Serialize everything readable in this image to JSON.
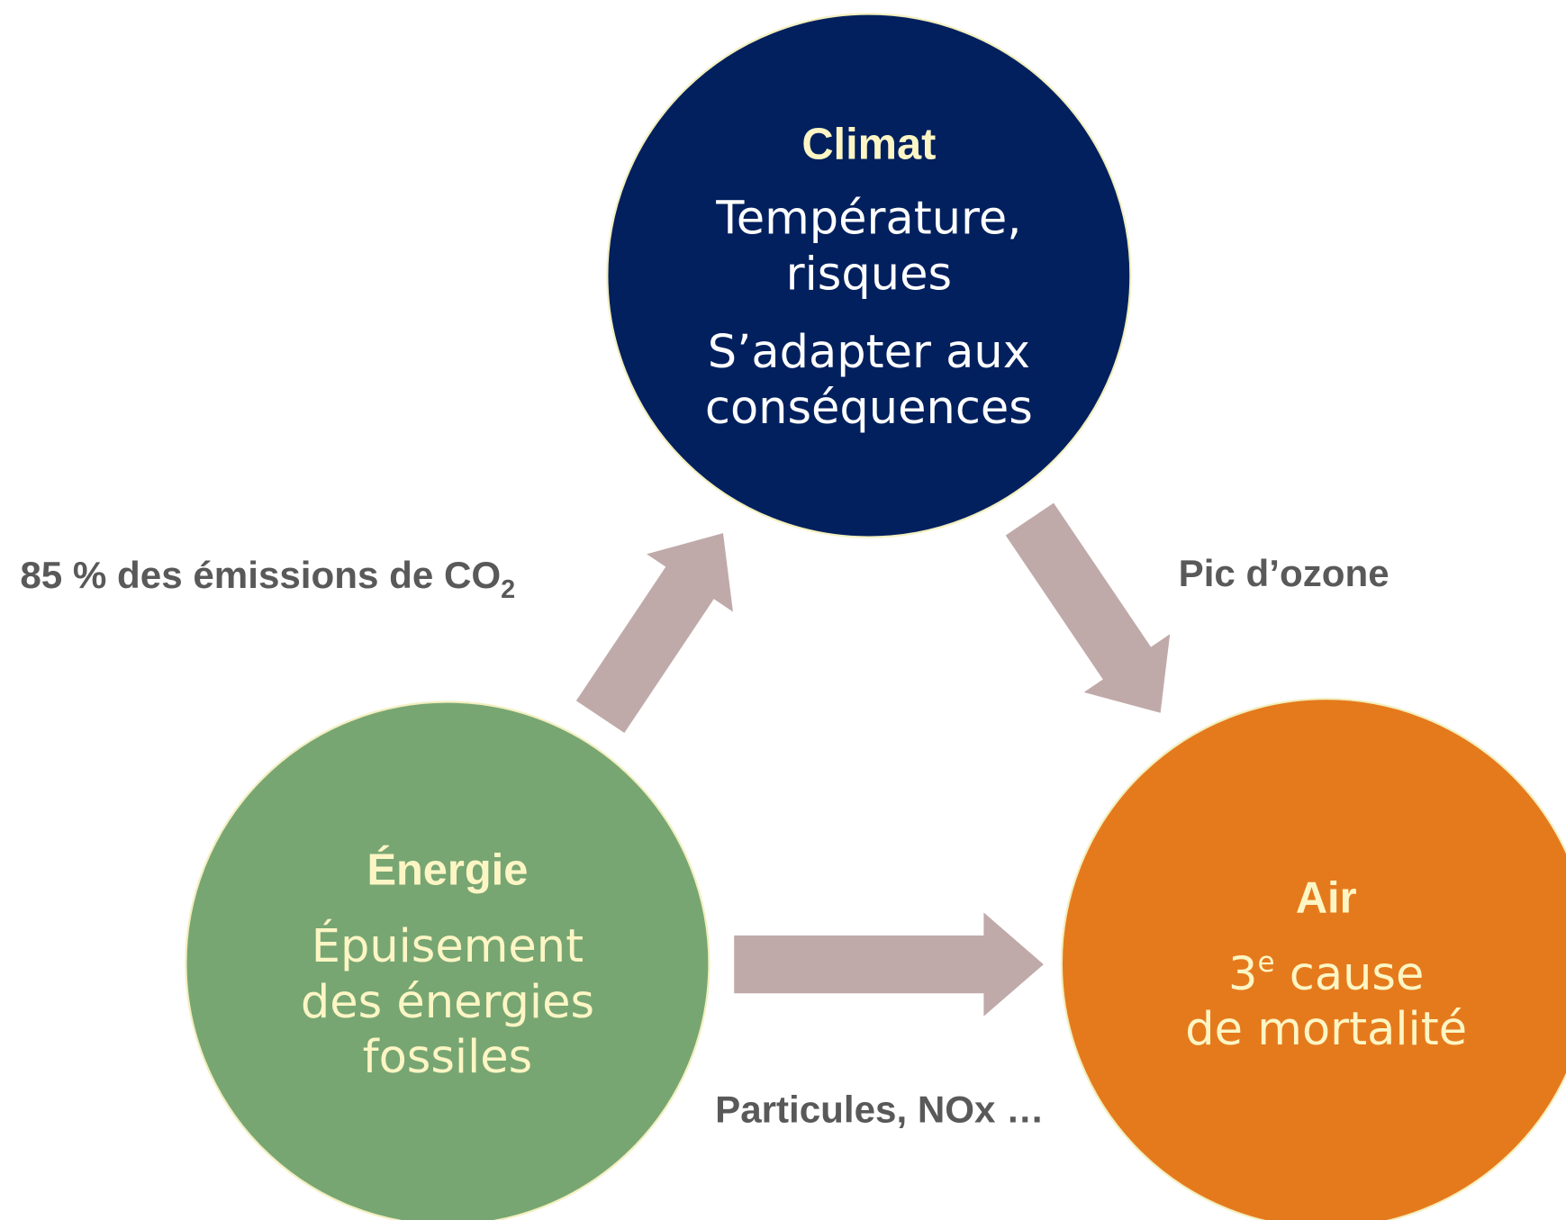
{
  "nodes": [
    {
      "title": "Climat",
      "lines": [
        "Température,",
        "risques",
        "S’adapter aux",
        "conséquences"
      ]
    },
    {
      "title": "Énergie",
      "lines": [
        "Épuisement",
        "des énergies",
        "fossiles"
      ]
    },
    {
      "title": "Air",
      "first_line": {
        "number": "3",
        "superscript": "e",
        "rest": " cause"
      },
      "lines": [
        "de mortalité"
      ]
    }
  ],
  "edges": [
    {
      "label": "85 % des émissions de CO",
      "subscript": "2"
    },
    {
      "label": "Pic d’ozone"
    },
    {
      "label": "Particules, NOx …"
    }
  ]
}
